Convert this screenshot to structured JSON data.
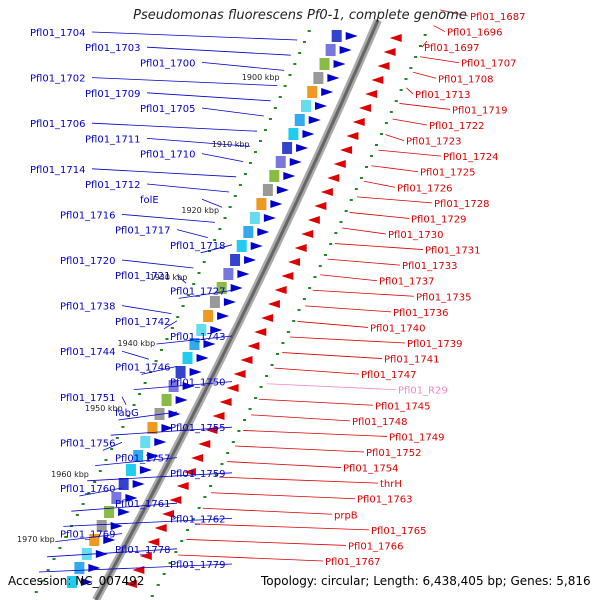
{
  "title": "Pseudomonas fluorescens Pf0-1, complete genome",
  "footer": {
    "accession": "Accession: NC_007492",
    "topology": "Topology: circular; Length: 6,438,405 bp; Genes: 5,816"
  },
  "colors": {
    "minus_strand": "#0000cc",
    "plus_strand": "#dd0000",
    "rna": "#ee88cc",
    "backbone": "#888888",
    "tick": "#228822"
  },
  "kbp_marks": [
    "1900 kbp",
    "1910 kbp",
    "1920 kbp",
    "1930 kbp",
    "1940 kbp",
    "1950 kbp",
    "1960 kbp",
    "1970 kbp"
  ],
  "left_labels": [
    "Pfl01_1704",
    "Pfl01_1703",
    "Pfl01_1700",
    "Pfl01_1702",
    "Pfl01_1709",
    "Pfl01_1705",
    "Pfl01_1706",
    "Pfl01_1711",
    "Pfl01_1710",
    "Pfl01_1714",
    "Pfl01_1712",
    "folE",
    "Pfl01_1716",
    "Pfl01_1717",
    "Pfl01_1718",
    "Pfl01_1720",
    "Pfl01_1721",
    "Pfl01_1727",
    "Pfl01_1738",
    "Pfl01_1742",
    "Pfl01_1743",
    "Pfl01_1744",
    "Pfl01_1746",
    "Pfl01_1750",
    "Pfl01_1751",
    "fabG",
    "Pfl01_1755",
    "Pfl01_1756",
    "Pfl01_1757",
    "Pfl01_1759",
    "Pfl01_1760",
    "Pfl01_1761",
    "Pfl01_1762",
    "Pfl01_1769",
    "Pfl01_1778",
    "Pfl01_1779"
  ],
  "right_labels": [
    "Pfl01_1687",
    "Pfl01_1696",
    "Pfl01_1697",
    "Pfl01_1707",
    "Pfl01_1708",
    "Pfl01_1713",
    "Pfl01_1719",
    "Pfl01_1722",
    "Pfl01_1723",
    "Pfl01_1724",
    "Pfl01_1725",
    "Pfl01_1726",
    "Pfl01_1728",
    "Pfl01_1729",
    "Pfl01_1730",
    "Pfl01_1731",
    "Pfl01_1733",
    "Pfl01_1737",
    "Pfl01_1735",
    "Pfl01_1736",
    "Pfl01_1740",
    "Pfl01_1739",
    "Pfl01_1741",
    "Pfl01_1747",
    "Pfl01_R29",
    "Pfl01_1745",
    "Pfl01_1748",
    "Pfl01_1749",
    "Pfl01_1752",
    "Pfl01_1754",
    "thrH",
    "Pfl01_1763",
    "prpB",
    "Pfl01_1765",
    "Pfl01_1766",
    "Pfl01_1767"
  ]
}
